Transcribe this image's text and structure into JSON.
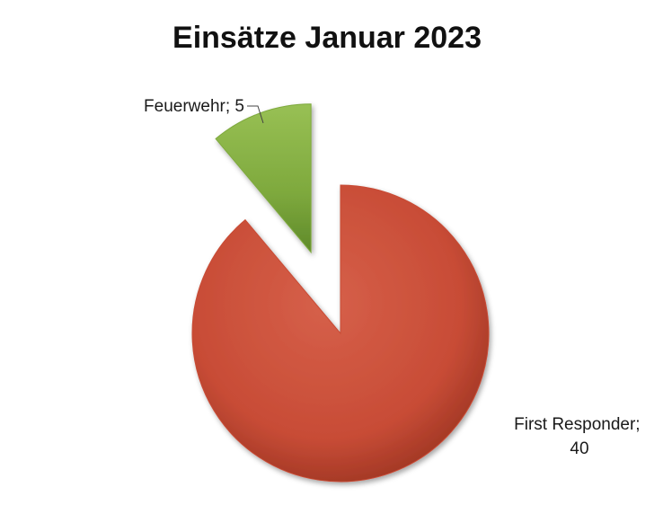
{
  "chart_data": {
    "type": "pie",
    "title": "Einsätze Januar 2023",
    "legend": "none",
    "categories": [
      "First Responder",
      "Feuerwehr"
    ],
    "values": [
      40,
      5
    ],
    "colors": [
      "#c84c36",
      "#7ea93d"
    ],
    "exploded": "Feuerwehr",
    "slices": [
      {
        "category": "First Responder",
        "value": 40,
        "color": "#c84c36",
        "label_line1": "First Responder;",
        "label_line2": "40"
      },
      {
        "category": "Feuerwehr",
        "value": 5,
        "color": "#7ea93d",
        "label_line1": "Feuerwehr; 5"
      }
    ]
  }
}
